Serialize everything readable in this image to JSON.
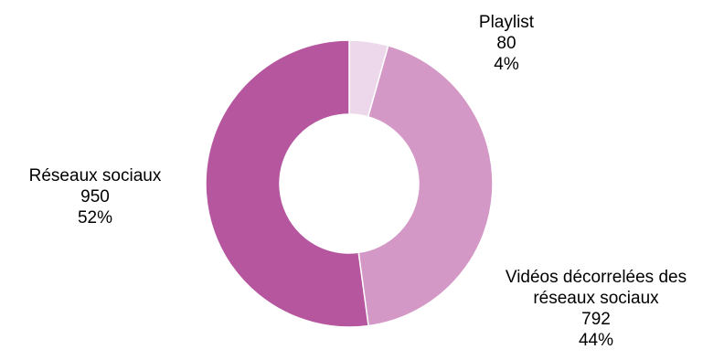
{
  "chart_data": {
    "type": "pie",
    "variant": "donut",
    "title": "",
    "legend": "none",
    "slices": [
      {
        "label_lines": [
          "Playlist"
        ],
        "value": 80,
        "percent_label": "4%",
        "color": "#ecd8ea"
      },
      {
        "label_lines": [
          "Vidéos décorrelées des",
          "réseaux sociaux"
        ],
        "value": 792,
        "percent_label": "44%",
        "color": "#d398c6"
      },
      {
        "label_lines": [
          "Réseaux sociaux"
        ],
        "value": 950,
        "percent_label": "52%",
        "color": "#b5569f"
      }
    ]
  }
}
